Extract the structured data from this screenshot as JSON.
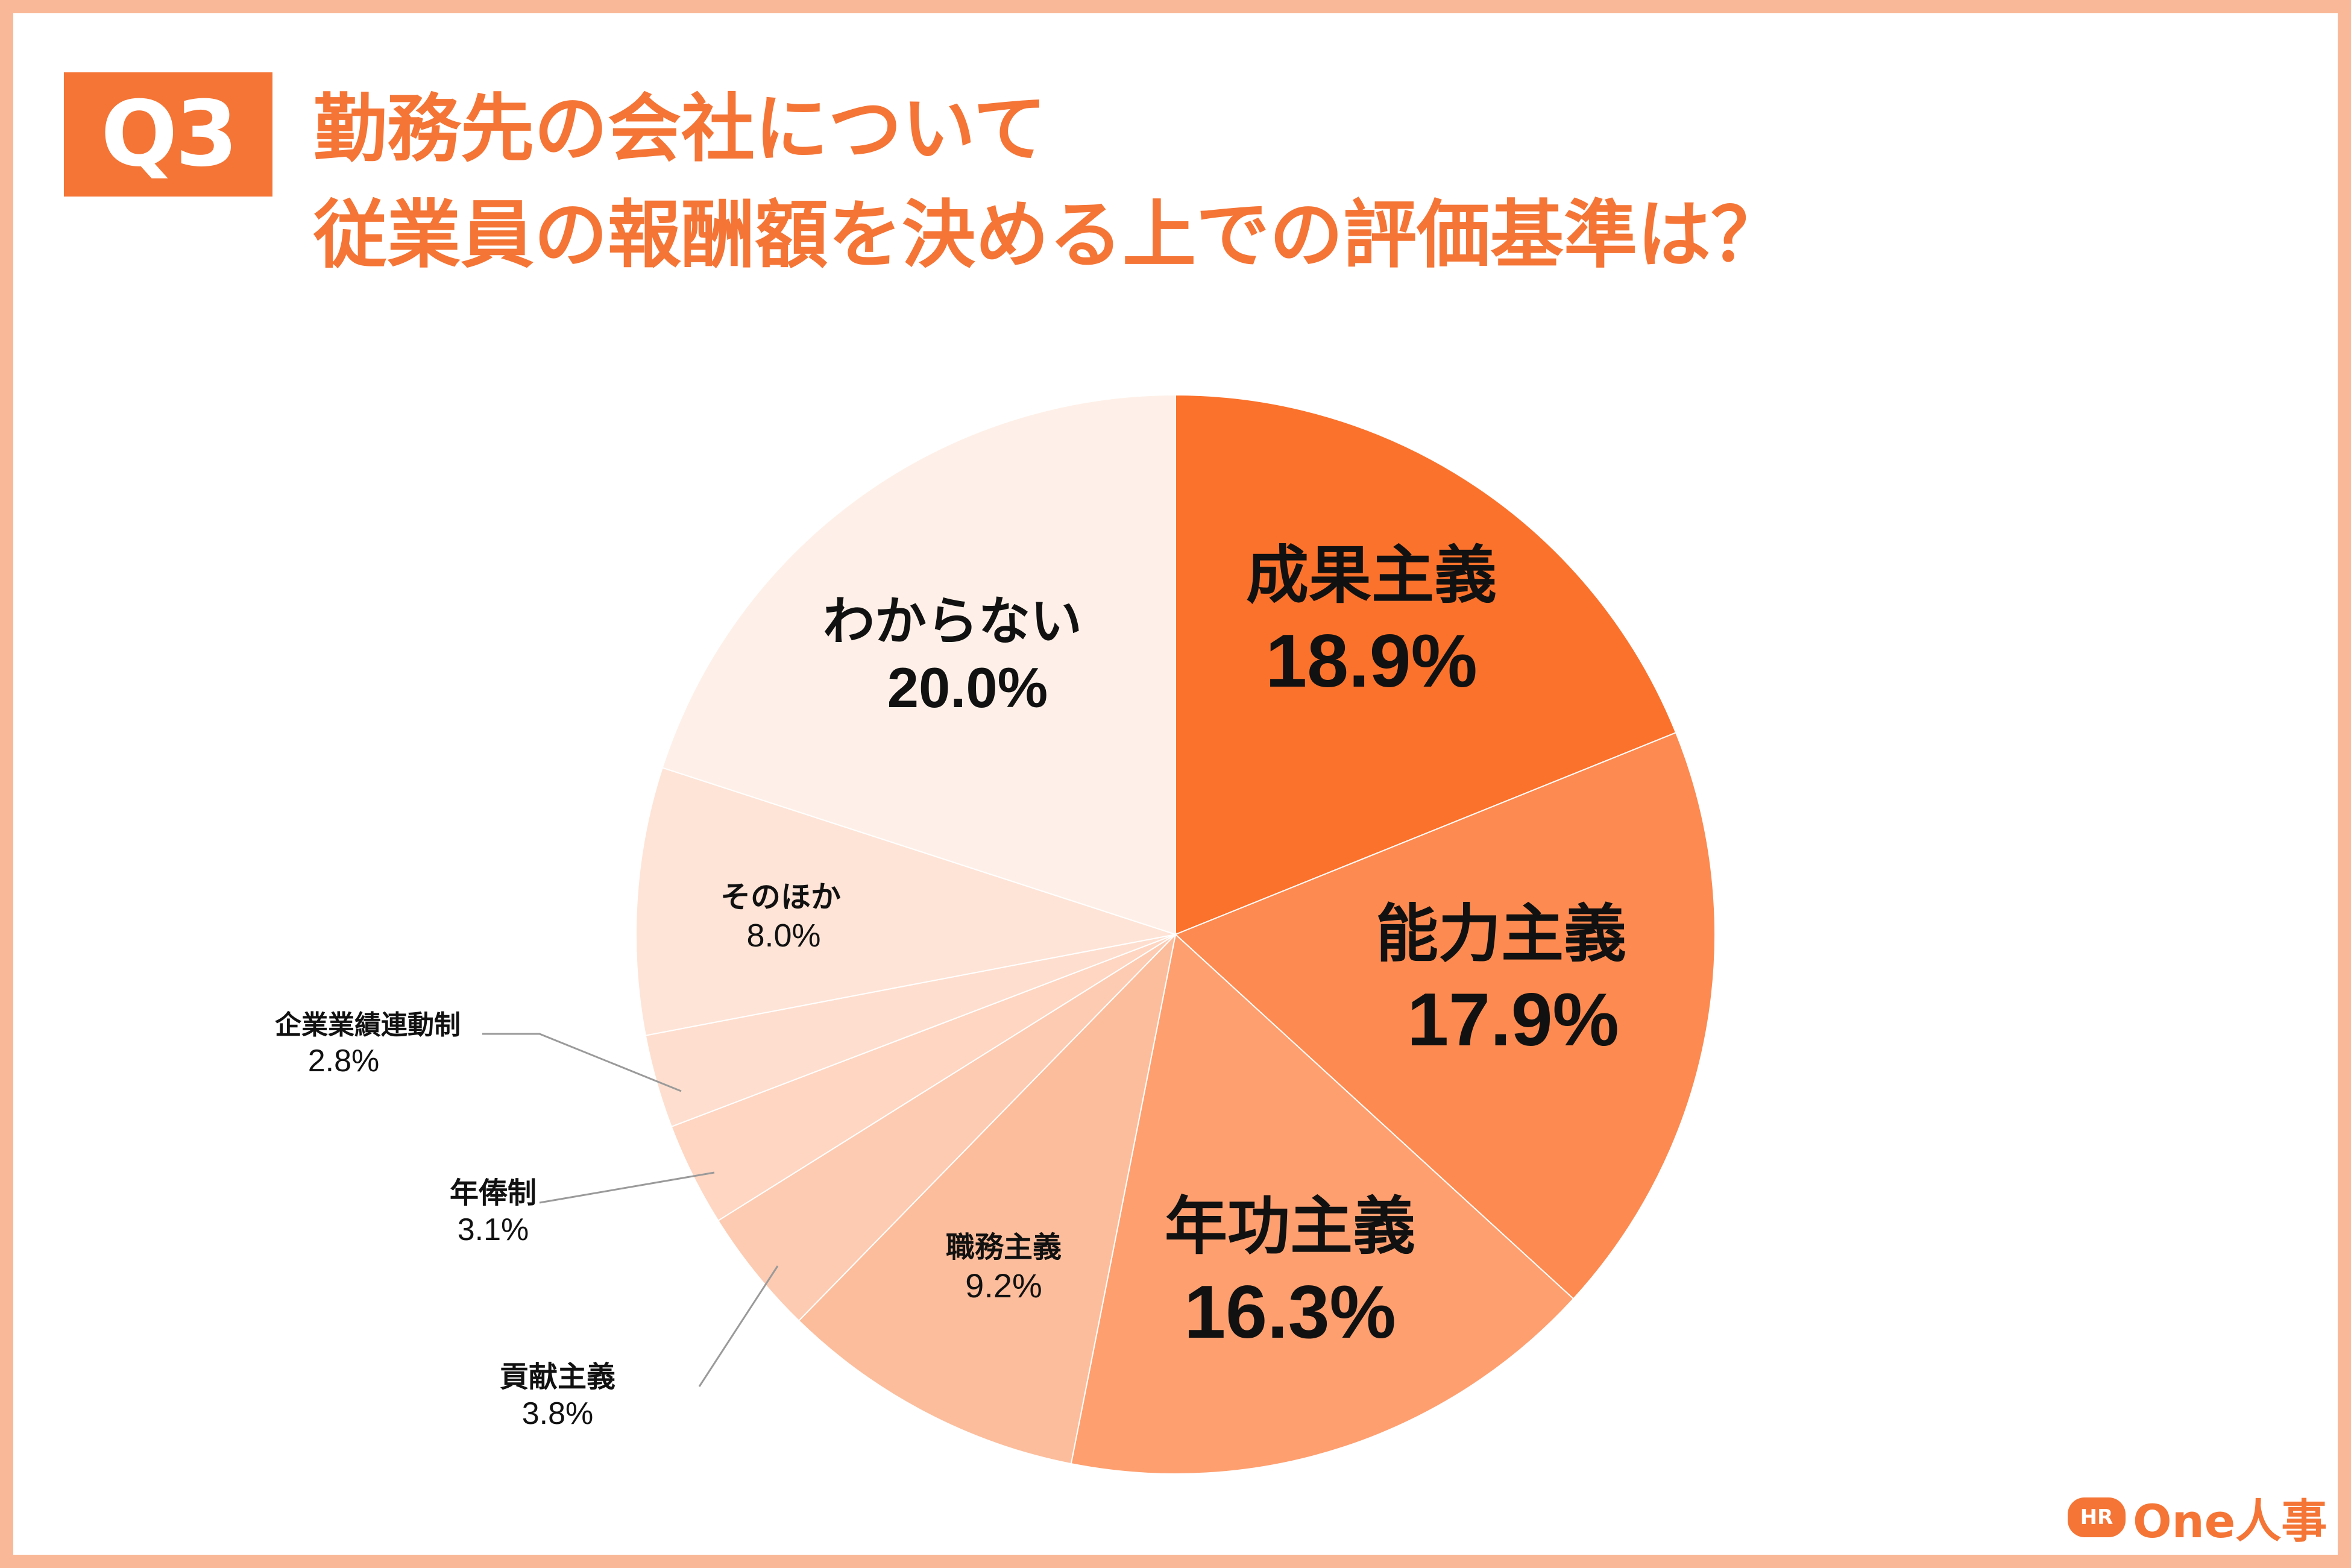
{
  "badge": "Q3",
  "title": {
    "line1": "勤務先の会社について",
    "line2": "従業員の報酬額を決める上での評価基準は？"
  },
  "brand": {
    "icon_text": "HR",
    "name": "One人事"
  },
  "colors": {
    "accent": "#f47536",
    "frame": "#f9b898"
  },
  "chart_data": {
    "type": "pie",
    "title": "勤務先の会社について 従業員の報酬額を決める上での評価基準は？",
    "unit": "%",
    "slices": [
      {
        "label": "成果主義",
        "value": 18.9,
        "display": "18.9%",
        "color": "#fb722c"
      },
      {
        "label": "能力主義",
        "value": 17.9,
        "display": "17.9%",
        "color": "#fd8a50"
      },
      {
        "label": "年功主義",
        "value": 16.3,
        "display": "16.3%",
        "color": "#fe9f70"
      },
      {
        "label": "職務主義",
        "value": 9.2,
        "display": "9.2%",
        "color": "#fcbd9c"
      },
      {
        "label": "貢献主義",
        "value": 3.8,
        "display": "3.8%",
        "color": "#fdcbb2"
      },
      {
        "label": "年俸制",
        "value": 3.1,
        "display": "3.1%",
        "color": "#fed6c2"
      },
      {
        "label": "企業業績連動制",
        "value": 2.8,
        "display": "2.8%",
        "color": "#fedfcf"
      },
      {
        "label": "そのほか",
        "value": 8.0,
        "display": "8.0%",
        "color": "#fee4d7"
      },
      {
        "label": "わからない",
        "value": 20.0,
        "display": "20.0%",
        "color": "#fef0e8"
      }
    ]
  }
}
